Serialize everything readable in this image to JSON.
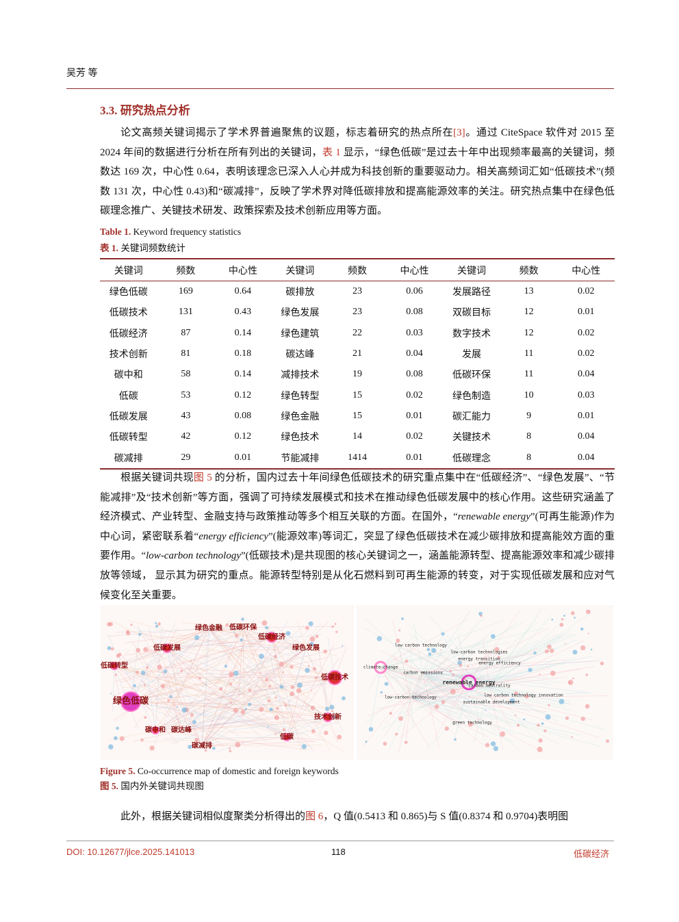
{
  "header": {
    "author": "吴芳 等"
  },
  "section": {
    "heading": "3.3. 研究热点分析"
  },
  "paragraphs": [
    {
      "runs": [
        {
          "text": "论文高频关键词揭示了学术界普遍聚焦的议题，标志着研究的热点所在"
        },
        {
          "text": "[3]",
          "style": "ref"
        },
        {
          "text": "。通过 CiteSpace 软件对 2015 至 2024 年间的数据进行分析在所有列出的关键词，"
        },
        {
          "text": "表 1",
          "style": "ref"
        },
        {
          "text": " 显示，“绿色低碳”是过去十年中出现频率最高的关键词，频数达 169 次，中心性 0.64，表明该理念已深入人心并成为科技创新的重要驱动力。相关高频词汇如“低碳技术”(频数 131 次，中心性 0.43)和“碳减排”，反映了学术界对降低碳排放和提高能源效率的关注。研究热点集中在绿色低碳理念推广、关键技术研发、政策探索及技术创新应用等方面。"
        }
      ]
    },
    {
      "runs": [
        {
          "text": "根据关键词共现"
        },
        {
          "text": "图 5",
          "style": "ref"
        },
        {
          "text": " 的分析，国内过去十年间绿色低碳技术的研究重点集中在“低碳经济”、“绿色发展”、“节能减排”及“技术创新”等方面，强调了可持续发展模式和技术在推动绿色低碳发展中的核心作用。这些研究涵盖了经济模式、产业转型、金融支持与政策推动等多个相互关联的方面。在国外，“"
        },
        {
          "text": "renewable energy",
          "style": "italic"
        },
        {
          "text": "”(可再生能源)作为中心词，紧密联系着“"
        },
        {
          "text": "energy efficiency",
          "style": "italic"
        },
        {
          "text": "”(能源效率)等词汇，突显了绿色低碳技术在减少碳排放和提高能效方面的重要作用。“"
        },
        {
          "text": "low-carbon technology",
          "style": "italic"
        },
        {
          "text": "”(低碳技术)是共现图的核心关键词之一，涵盖能源转型、提高能源效率和减少碳排放等领域， 显示其为研究的重点。能源转型特别是从化石燃料到可再生能源的转变，对于实现低碳发展和应对气候变化至关重要。"
        }
      ]
    },
    {
      "runs": [
        {
          "text": "此外，根据关键词相似度聚类分析得出的"
        },
        {
          "text": "图 6",
          "style": "ref"
        },
        {
          "text": "，Q 值(0.5413 和 0.865)与 S 值(0.8374 和 0.9704)表明图"
        }
      ]
    }
  ],
  "table": {
    "caption_en": {
      "label": "Table 1.",
      "text": "Keyword frequency statistics"
    },
    "caption_zh": {
      "label": "表 1.",
      "text": "关键词频数统计"
    },
    "headers": [
      "关键词",
      "频数",
      "中心性",
      "关键词",
      "频数",
      "中心性",
      "关键词",
      "频数",
      "中心性"
    ],
    "rows": [
      [
        "绿色低碳",
        "169",
        "0.64",
        "碳排放",
        "23",
        "0.06",
        "发展路径",
        "13",
        "0.02"
      ],
      [
        "低碳技术",
        "131",
        "0.43",
        "绿色发展",
        "23",
        "0.08",
        "双碳目标",
        "12",
        "0.01"
      ],
      [
        "低碳经济",
        "87",
        "0.14",
        "绿色建筑",
        "22",
        "0.03",
        "数字技术",
        "12",
        "0.02"
      ],
      [
        "技术创新",
        "81",
        "0.18",
        "碳达峰",
        "21",
        "0.04",
        "发展",
        "11",
        "0.02"
      ],
      [
        "碳中和",
        "58",
        "0.14",
        "减排技术",
        "19",
        "0.08",
        "低碳环保",
        "11",
        "0.04"
      ],
      [
        "低碳",
        "53",
        "0.12",
        "绿色转型",
        "15",
        "0.02",
        "绿色制造",
        "10",
        "0.03"
      ],
      [
        "低碳发展",
        "43",
        "0.08",
        "绿色金融",
        "15",
        "0.01",
        "碳汇能力",
        "9",
        "0.01"
      ],
      [
        "低碳转型",
        "42",
        "0.12",
        "绿色技术",
        "14",
        "0.02",
        "关键技术",
        "8",
        "0.04"
      ],
      [
        "碳减排",
        "29",
        "0.01",
        "节能减排",
        "1414",
        "0.01",
        "低碳理念",
        "8",
        "0.04"
      ]
    ]
  },
  "figure": {
    "domestic_labels": [
      "绿色低碳",
      "低碳技术",
      "低碳经济",
      "技术创新",
      "低碳发展",
      "低碳转型",
      "碳中和",
      "低碳",
      "碳减排",
      "绿色发展",
      "碳达峰",
      "绿色金融",
      "低碳环保"
    ],
    "foreign_labels": [
      "low carbon technology",
      "low-carbon technologies",
      "energy transition",
      "energy efficiency",
      "climate change",
      "carbon emissions",
      "renewable energy",
      "carbon neutrality",
      "low-carbon technology",
      "low carbon technology innovation",
      "sustainable development",
      "green technology"
    ],
    "caption_en": {
      "label": "Figure 5.",
      "text": "Co-occurrence map of domestic and foreign keywords"
    },
    "caption_zh": {
      "label": "图 5.",
      "text": "国内外关键词共现图"
    }
  },
  "footer": {
    "doi": "DOI: 10.12677/jlce.2025.141013",
    "page": "118",
    "journal": "低碳经济"
  }
}
